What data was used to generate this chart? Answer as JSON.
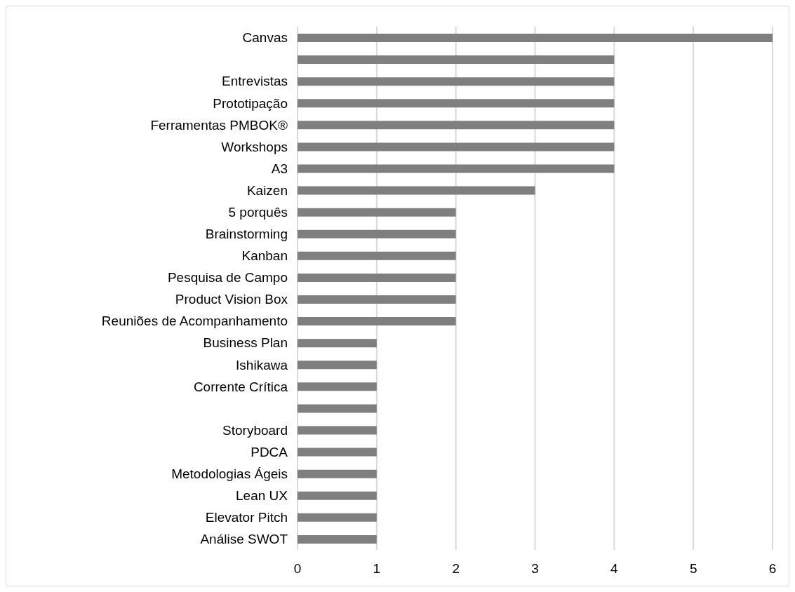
{
  "chart_data": {
    "type": "bar",
    "orientation": "horizontal",
    "categories": [
      "Canvas",
      null,
      "Entrevistas",
      "Prototipação",
      "Ferramentas PMBOK®",
      "Workshops",
      "A3",
      "Kaizen",
      "5 porquês",
      "Brainstorming",
      "Kanban",
      "Pesquisa de Campo",
      "Product Vision Box",
      "Reuniões de Acompanhamento",
      "Business Plan",
      "Ishikawa",
      "Corrente Crítica",
      null,
      "Storyboard",
      "PDCA",
      "Metodologias Ágeis",
      "Lean UX",
      "Elevator Pitch",
      "Análise SWOT"
    ],
    "values": [
      6,
      4,
      4,
      4,
      4,
      4,
      4,
      3,
      2,
      2,
      2,
      2,
      2,
      2,
      1,
      1,
      1,
      1,
      1,
      1,
      1,
      1,
      1,
      1
    ],
    "color": "#7f7f7f",
    "xlim": [
      0,
      6
    ],
    "xticks": [
      0,
      1,
      2,
      3,
      4,
      5,
      6
    ],
    "grid": "x"
  }
}
